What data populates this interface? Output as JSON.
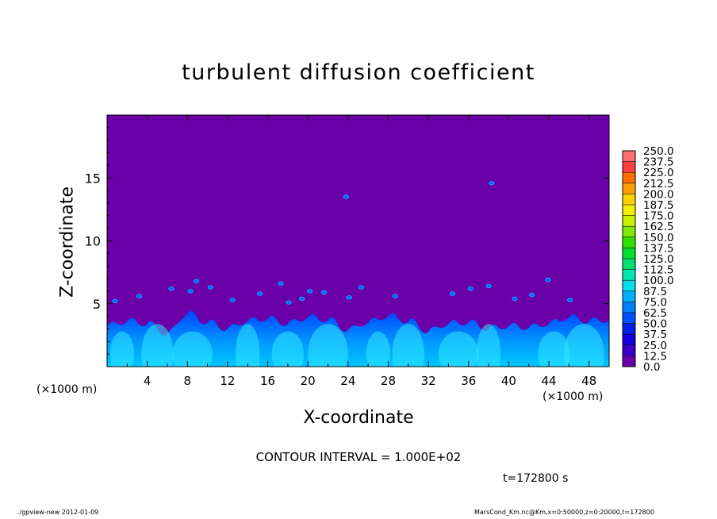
{
  "chart_data": {
    "type": "heatmap",
    "title": "turbulent diffusion coefficient",
    "xlabel": "X-coordinate",
    "ylabel": "Z-coordinate",
    "x_unit_label": "(×1000 m)",
    "xlim": [
      0,
      50
    ],
    "ylim": [
      0,
      20
    ],
    "x_ticks": [
      4,
      8,
      12,
      16,
      20,
      24,
      28,
      32,
      36,
      40,
      44,
      48
    ],
    "y_ticks": [
      5,
      10,
      15
    ],
    "background_value": 0.0,
    "colorbar": {
      "levels": [
        0.0,
        12.5,
        25.0,
        37.5,
        50.0,
        62.5,
        75.0,
        87.5,
        100.0,
        112.5,
        125.0,
        137.5,
        150.0,
        162.5,
        175.0,
        187.5,
        200.0,
        212.5,
        225.0,
        237.5,
        250.0
      ],
      "labels": [
        "0.0",
        "12.5",
        "25.0",
        "37.5",
        "50.0",
        "62.5",
        "75.0",
        "87.5",
        "100.0",
        "112.5",
        "125.0",
        "137.5",
        "150.0",
        "162.5",
        "175.0",
        "187.5",
        "200.0",
        "212.5",
        "225.0",
        "237.5",
        "250.0"
      ],
      "colors": [
        "#6a00a8",
        "#3a00c8",
        "#1000e0",
        "#0020f0",
        "#0050ff",
        "#0080ff",
        "#00b0ff",
        "#00e0ee",
        "#00e8b0",
        "#00e070",
        "#00e030",
        "#30e000",
        "#80e800",
        "#c8f000",
        "#f0f000",
        "#ffd000",
        "#ffa000",
        "#ff7000",
        "#ff4040",
        "#ff7070"
      ]
    },
    "boundary_layer": {
      "x": [
        0,
        2,
        4,
        6,
        8,
        10,
        12,
        14,
        16,
        18,
        20,
        22,
        24,
        26,
        28,
        30,
        32,
        34,
        36,
        38,
        40,
        42,
        44,
        46,
        48,
        50
      ],
      "top_z": [
        3.2,
        3.6,
        3.4,
        2.6,
        4.2,
        3.5,
        3.0,
        3.6,
        3.8,
        3.4,
        3.9,
        3.7,
        2.9,
        3.5,
        4.0,
        3.6,
        2.8,
        3.4,
        3.5,
        3.0,
        3.2,
        3.1,
        3.4,
        3.9,
        3.6,
        3.7
      ]
    }
  },
  "annotations": {
    "contour_interval": "CONTOUR INTERVAL = 1.000E+02",
    "time": "t=172800 s"
  },
  "footer": {
    "left": "./gpview-new  2012-01-09",
    "right": "MarsCond_Km.nc@Km,x=0:50000,z=0:20000,t=172800"
  }
}
